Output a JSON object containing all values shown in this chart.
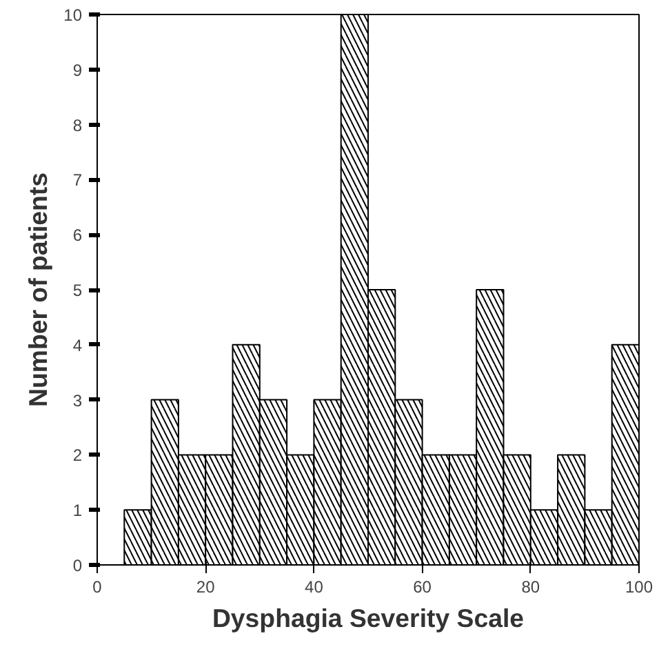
{
  "chart_data": {
    "type": "histogram",
    "xlabel": "Dysphagia Severity Scale",
    "ylabel": "Number of patients",
    "bins": [
      5,
      10,
      15,
      20,
      25,
      30,
      35,
      40,
      45,
      50,
      55,
      60,
      65,
      70,
      75,
      80,
      85,
      90,
      95,
      100
    ],
    "values": [
      1,
      3,
      2,
      2,
      4,
      3,
      2,
      3,
      10,
      5,
      3,
      2,
      2,
      5,
      2,
      1,
      2,
      1,
      4
    ],
    "color": "#000000",
    "xlim": [
      0,
      100
    ],
    "xticks": [
      0,
      20,
      40,
      60,
      80,
      100
    ],
    "ylim": [
      0,
      10
    ],
    "yticks": [
      0,
      1,
      2,
      3,
      4,
      5,
      6,
      7,
      8,
      9,
      10
    ],
    "grid": false
  }
}
